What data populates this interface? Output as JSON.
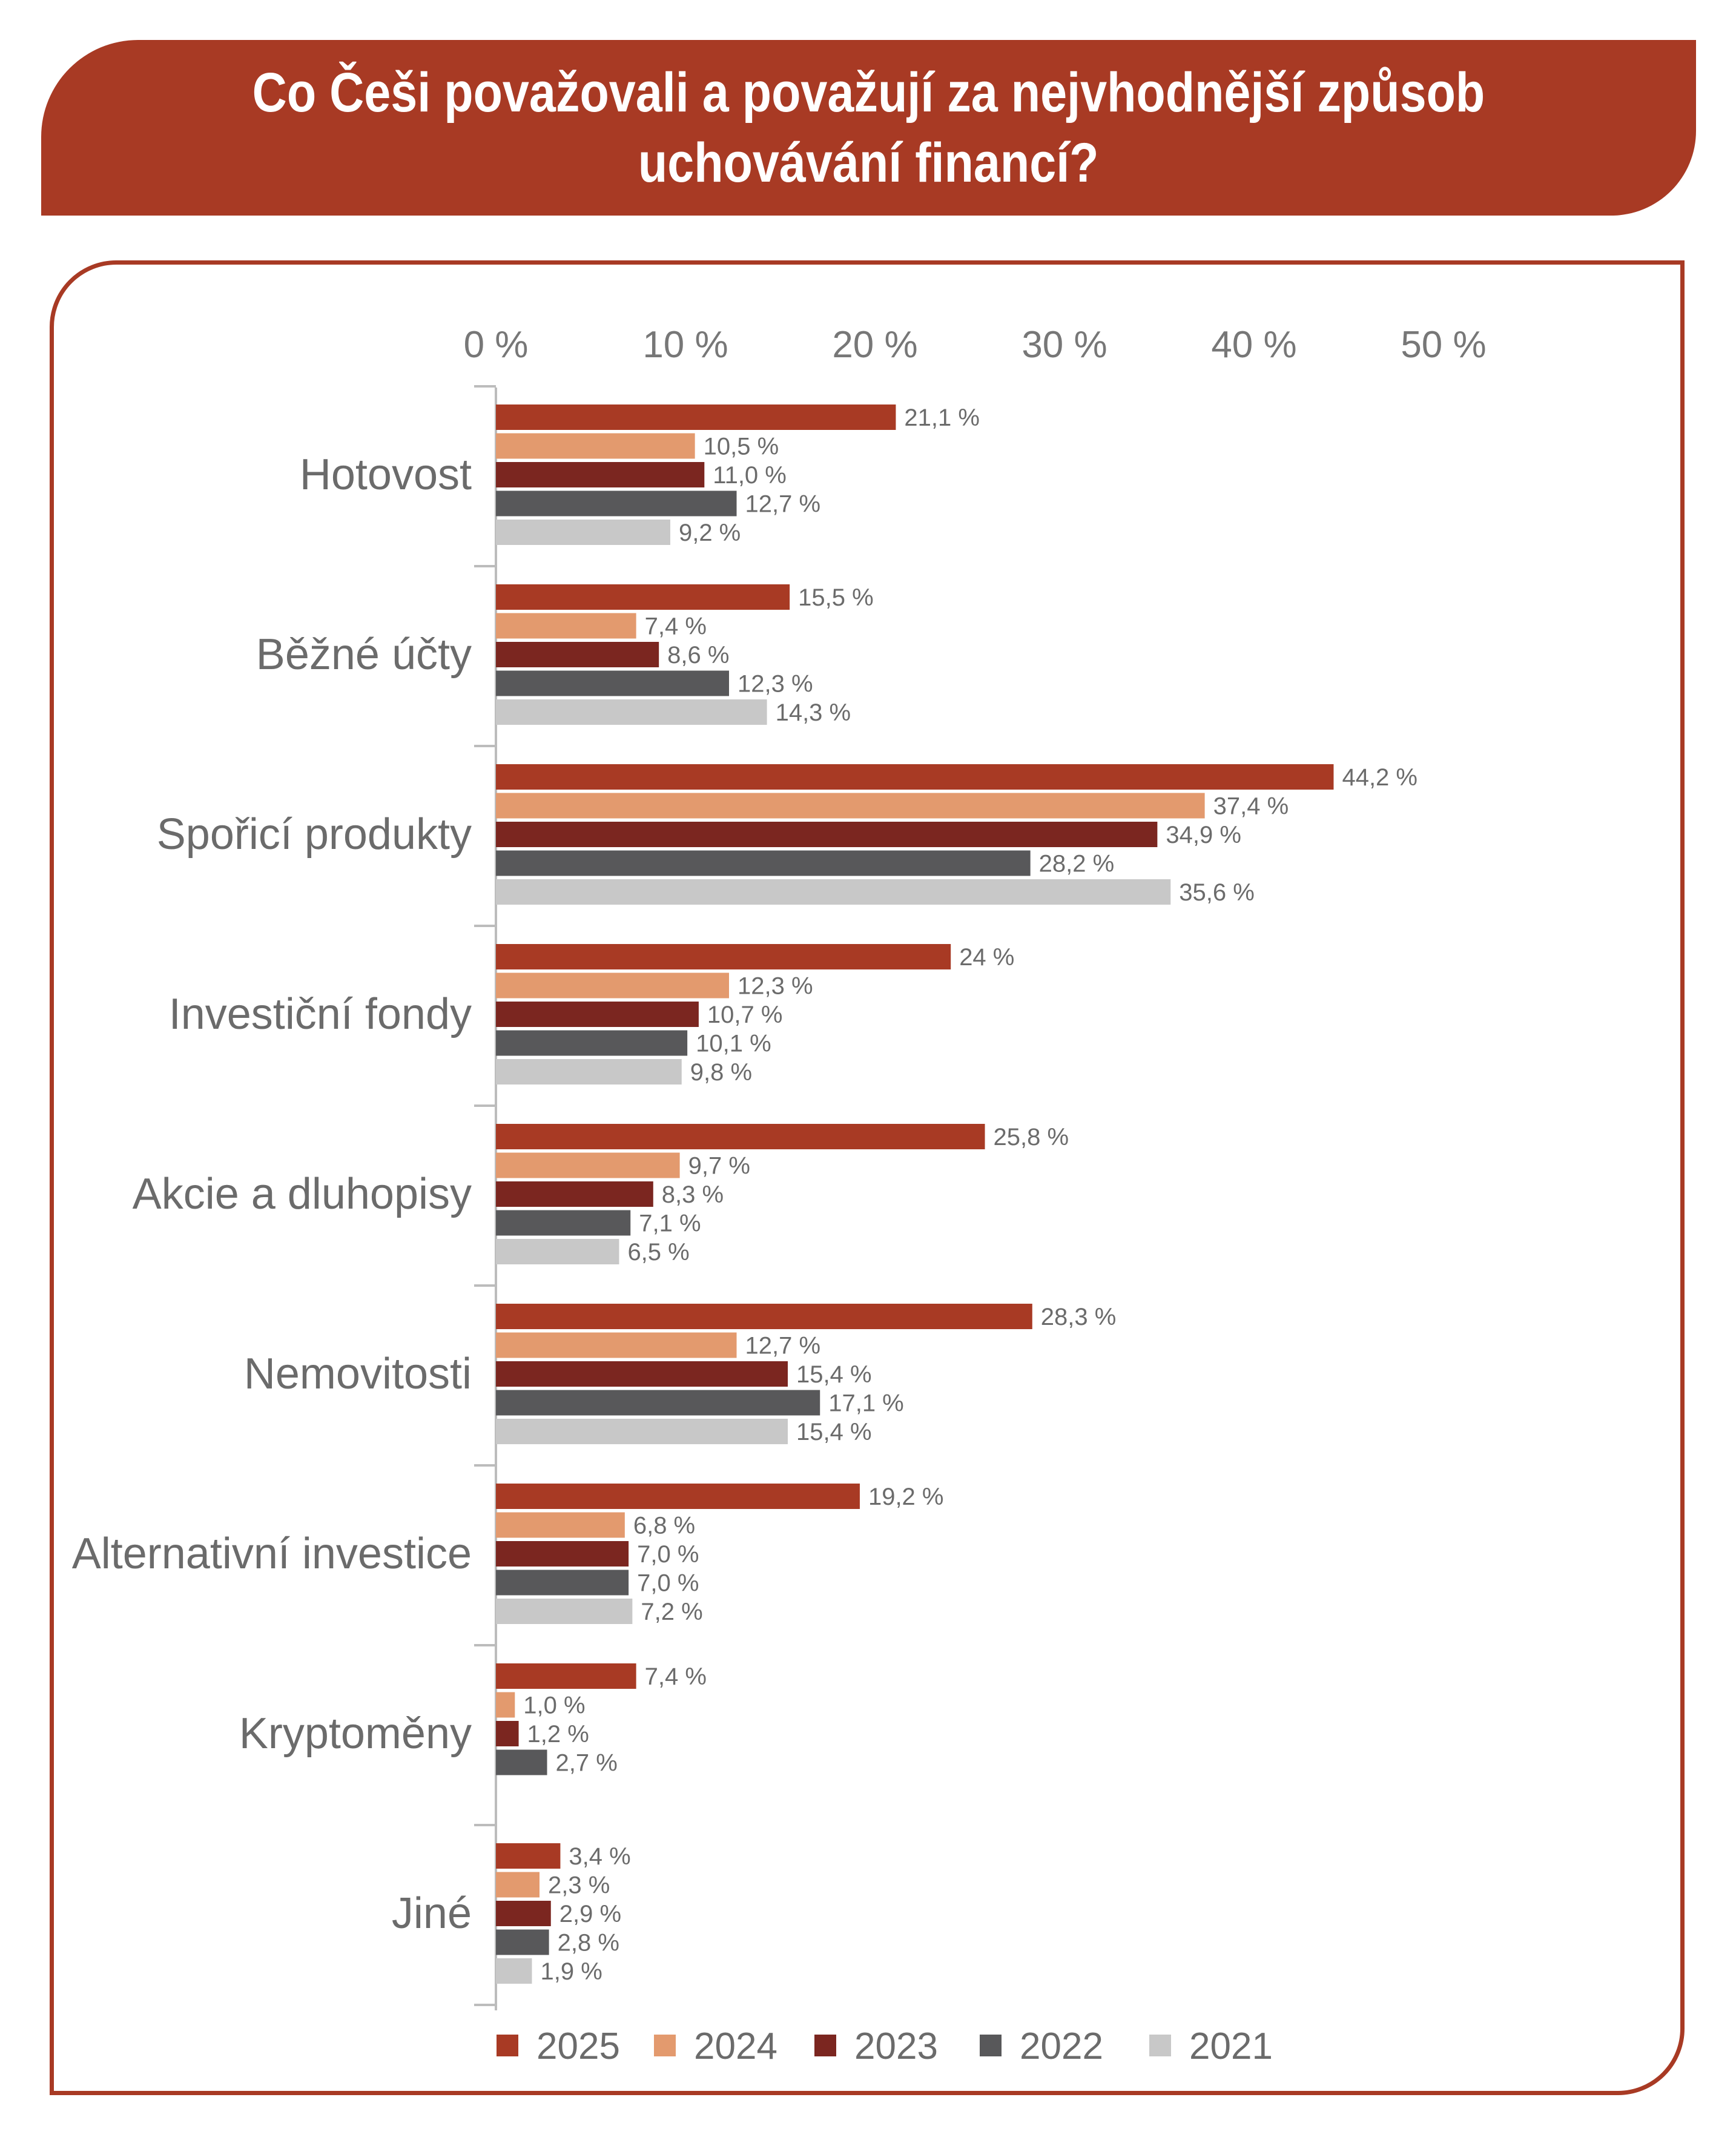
{
  "title_lines": [
    "Co Češi považovali a považují za nejvhodnější způsob",
    "uchovávání financí?"
  ],
  "colors": {
    "banner": "#a83a24",
    "text": "#6b6b6b",
    "axis": "#bcbcbc",
    "series": {
      "2025": "#a83a24",
      "2024": "#e39a6e",
      "2023": "#7b2620",
      "2022": "#58585a",
      "2021": "#c8c8c8"
    }
  },
  "chart_data": {
    "type": "bar",
    "orientation": "horizontal",
    "title": "Co Češi považovali a považují za nejvhodnější způsob uchovávání financí?",
    "xlim": [
      0,
      50
    ],
    "x_ticks": [
      "0 %",
      "10 %",
      "20 %",
      "30 %",
      "40 %",
      "50 %"
    ],
    "x_tick_values": [
      0,
      10,
      20,
      30,
      40,
      50
    ],
    "grid": false,
    "legend_position": "bottom",
    "categories": [
      "Hotovost",
      "Běžné účty",
      "Spořicí produkty",
      "Investiční fondy",
      "Akcie a dluhopisy",
      "Nemovitosti",
      "Alternativní investice",
      "Kryptoměny",
      "Jiné"
    ],
    "series": [
      {
        "name": "2025",
        "values": [
          21.1,
          15.5,
          44.2,
          24,
          25.8,
          28.3,
          19.2,
          7.4,
          3.4
        ],
        "labels": [
          "21,1 %",
          "15,5 %",
          "44,2 %",
          "24 %",
          "25,8 %",
          "28,3 %",
          "19,2 %",
          "7,4 %",
          "3,4 %"
        ]
      },
      {
        "name": "2024",
        "values": [
          10.5,
          7.4,
          37.4,
          12.3,
          9.7,
          12.7,
          6.8,
          1.0,
          2.3
        ],
        "labels": [
          "10,5 %",
          "7,4 %",
          "37,4 %",
          "12,3 %",
          "9,7 %",
          "12,7 %",
          "6,8 %",
          "1,0 %",
          "2,3 %"
        ]
      },
      {
        "name": "2023",
        "values": [
          11.0,
          8.6,
          34.9,
          10.7,
          8.3,
          15.4,
          7.0,
          1.2,
          2.9
        ],
        "labels": [
          "11,0 %",
          "8,6 %",
          "34,9 %",
          "10,7 %",
          "8,3 %",
          "15,4 %",
          "7,0 %",
          "1,2 %",
          "2,9 %"
        ]
      },
      {
        "name": "2022",
        "values": [
          12.7,
          12.3,
          28.2,
          10.1,
          7.1,
          17.1,
          7.0,
          2.7,
          2.8
        ],
        "labels": [
          "12,7 %",
          "12,3 %",
          "28,2 %",
          "10,1 %",
          "7,1 %",
          "17,1 %",
          "7,0 %",
          "2,7 %",
          "2,8 %"
        ]
      },
      {
        "name": "2021",
        "values": [
          9.2,
          14.3,
          35.6,
          9.8,
          6.5,
          15.4,
          7.2,
          null,
          1.9
        ],
        "labels": [
          "9,2 %",
          "14,3 %",
          "35,6 %",
          "9,8 %",
          "6,5 %",
          "15,4 %",
          "7,2 %",
          null,
          "1,9 %"
        ]
      }
    ]
  }
}
